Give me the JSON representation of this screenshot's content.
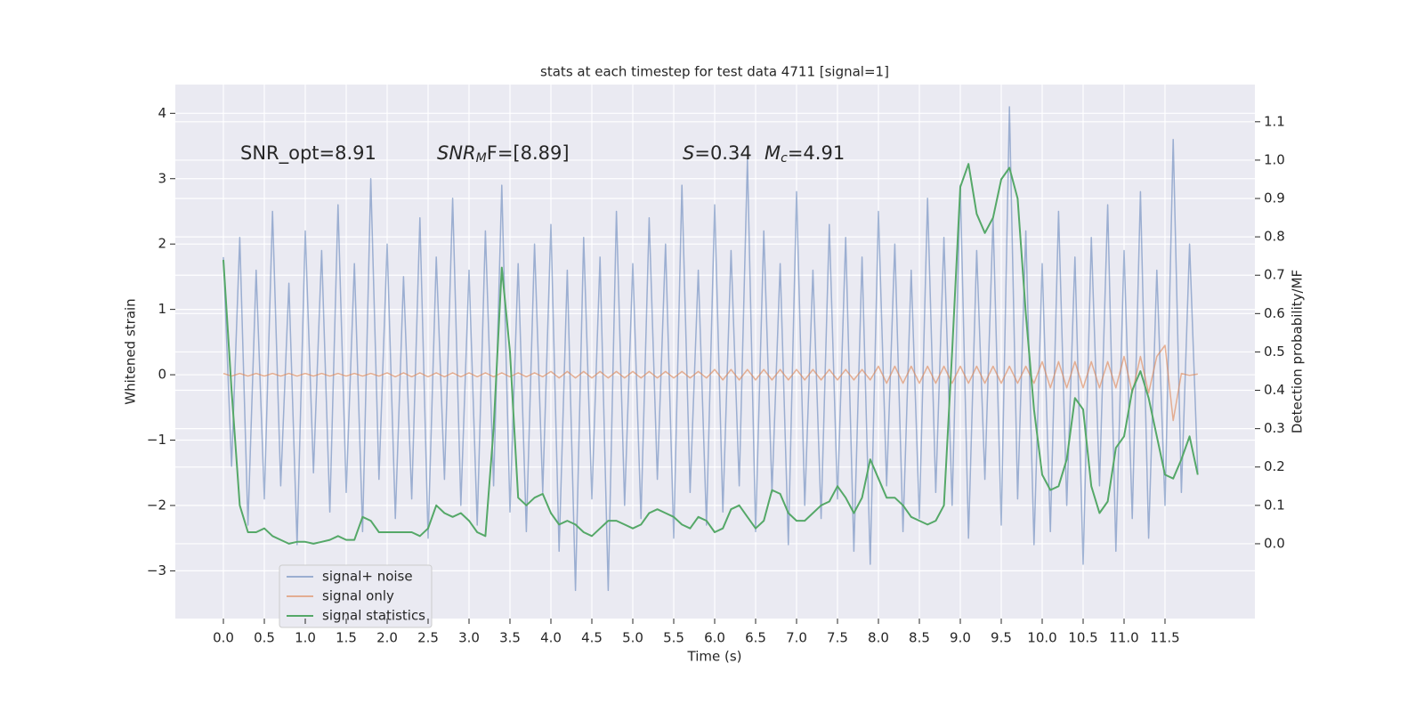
{
  "chart_data": {
    "type": "line",
    "title": "stats at each timestep for test data 4711 [signal=1]",
    "xlabel": "Time (s)",
    "ylabel": "Whitened strain",
    "y2label": "Detection probability/MF",
    "annotations": [
      [
        "SNR_opt=8.91"
      ],
      [
        "SNR",
        "M",
        "F=[8.89]"
      ],
      [
        "S",
        "=0.34"
      ],
      [
        "M",
        "c",
        "=4.91"
      ]
    ],
    "grid": true,
    "legend": "lower left",
    "xlim": [
      -0.587,
      12.598
    ],
    "ylim": [
      -3.73,
      4.44
    ],
    "y2lim": [
      -0.195,
      1.197
    ],
    "xticks": [
      {
        "value": 0,
        "label": "0.0"
      },
      {
        "value": 0.5,
        "label": "0.5"
      },
      {
        "value": 1,
        "label": "1.0"
      },
      {
        "value": 1.5,
        "label": "1.5"
      },
      {
        "value": 2,
        "label": "2.0"
      },
      {
        "value": 2.5,
        "label": "2.5"
      },
      {
        "value": 3,
        "label": "3.0"
      },
      {
        "value": 3.5,
        "label": "3.5"
      },
      {
        "value": 4,
        "label": "4.0"
      },
      {
        "value": 4.5,
        "label": "4.5"
      },
      {
        "value": 5,
        "label": "5.0"
      },
      {
        "value": 5.5,
        "label": "5.5"
      },
      {
        "value": 6,
        "label": "6.0"
      },
      {
        "value": 6.5,
        "label": "6.5"
      },
      {
        "value": 7,
        "label": "7.0"
      },
      {
        "value": 7.5,
        "label": "7.5"
      },
      {
        "value": 8,
        "label": "8.0"
      },
      {
        "value": 8.5,
        "label": "8.5"
      },
      {
        "value": 9,
        "label": "9.0"
      },
      {
        "value": 9.5,
        "label": "9.5"
      },
      {
        "value": 10,
        "label": "10.0"
      },
      {
        "value": 10.5,
        "label": "10.5"
      },
      {
        "value": 11,
        "label": "11.0"
      },
      {
        "value": 11.5,
        "label": "11.5"
      }
    ],
    "yticks": [
      {
        "value": -3,
        "label": "−3"
      },
      {
        "value": -2,
        "label": "−2"
      },
      {
        "value": -1,
        "label": "−1"
      },
      0,
      1,
      2,
      3,
      4
    ],
    "y2ticks": [
      {
        "value": 0,
        "label": "0.0"
      },
      {
        "value": 0.1,
        "label": "0.1"
      },
      {
        "value": 0.2,
        "label": "0.2"
      },
      {
        "value": 0.3,
        "label": "0.3"
      },
      {
        "value": 0.4,
        "label": "0.4"
      },
      {
        "value": 0.5,
        "label": "0.5"
      },
      {
        "value": 0.6,
        "label": "0.6"
      },
      {
        "value": 0.7,
        "label": "0.7"
      },
      {
        "value": 0.8,
        "label": "0.8"
      },
      {
        "value": 0.9,
        "label": "0.9"
      },
      {
        "value": 1.0,
        "label": "1.0"
      },
      {
        "value": 1.1,
        "label": "1.1"
      }
    ],
    "x": [
      0,
      0.1,
      0.2,
      0.3,
      0.4,
      0.5,
      0.6,
      0.7,
      0.8,
      0.9,
      1,
      1.1,
      1.2,
      1.3,
      1.4,
      1.5,
      1.6,
      1.7,
      1.8,
      1.9,
      2,
      2.1,
      2.2,
      2.3,
      2.4,
      2.5,
      2.6,
      2.7,
      2.8,
      2.9,
      3,
      3.1,
      3.2,
      3.3,
      3.4,
      3.5,
      3.6,
      3.7,
      3.8,
      3.9,
      4,
      4.1,
      4.2,
      4.3,
      4.4,
      4.5,
      4.6,
      4.7,
      4.8,
      4.9,
      5,
      5.1,
      5.2,
      5.3,
      5.4,
      5.5,
      5.6,
      5.7,
      5.8,
      5.9,
      6,
      6.1,
      6.2,
      6.3,
      6.4,
      6.5,
      6.6,
      6.7,
      6.8,
      6.9,
      7,
      7.1,
      7.2,
      7.3,
      7.4,
      7.5,
      7.6,
      7.7,
      7.8,
      7.9,
      8,
      8.1,
      8.2,
      8.3,
      8.4,
      8.5,
      8.6,
      8.7,
      8.8,
      8.9,
      9,
      9.1,
      9.2,
      9.3,
      9.4,
      9.5,
      9.6,
      9.7,
      9.8,
      9.9,
      10,
      10.1,
      10.2,
      10.3,
      10.4,
      10.5,
      10.6,
      10.7,
      10.8,
      10.9,
      11,
      11.1,
      11.2,
      11.3,
      11.4,
      11.5,
      11.6,
      11.7,
      11.8,
      11.9
    ],
    "series": [
      {
        "name": "signal+ noise",
        "color": "#4c72b0",
        "opacity": 0.5,
        "axis": "y",
        "values": [
          1.8,
          -1.4,
          2.1,
          -2.3,
          1.6,
          -1.9,
          2.5,
          -1.7,
          1.4,
          -2.6,
          2.2,
          -1.5,
          1.9,
          -2.1,
          2.6,
          -1.8,
          1.7,
          -2.4,
          3.0,
          -1.6,
          2.0,
          -2.2,
          1.5,
          -1.9,
          2.4,
          -2.5,
          1.8,
          -1.6,
          2.7,
          -2.0,
          1.6,
          -2.3,
          2.2,
          -1.7,
          2.9,
          -2.1,
          1.7,
          -2.4,
          2.0,
          -1.8,
          2.3,
          -2.7,
          1.6,
          -3.3,
          2.1,
          -1.9,
          1.8,
          -3.3,
          2.5,
          -2.0,
          1.7,
          -2.2,
          2.4,
          -1.6,
          2.0,
          -2.5,
          2.9,
          -1.8,
          1.6,
          -2.3,
          2.6,
          -2.1,
          1.9,
          -1.7,
          3.3,
          -2.4,
          2.2,
          -1.8,
          1.7,
          -2.6,
          2.8,
          -2.0,
          1.6,
          -2.2,
          2.3,
          -1.9,
          2.1,
          -2.7,
          1.8,
          -2.9,
          2.5,
          -1.7,
          2.0,
          -2.4,
          1.6,
          -2.2,
          2.7,
          -1.8,
          2.1,
          -2.0,
          2.9,
          -2.5,
          1.9,
          -1.6,
          2.4,
          -2.3,
          4.1,
          -1.9,
          2.2,
          -2.6,
          1.7,
          -2.4,
          2.5,
          -2.0,
          1.8,
          -2.9,
          2.1,
          -1.7,
          2.6,
          -2.7,
          1.9,
          -2.2,
          2.8,
          -2.5,
          1.6,
          -2.0,
          3.6,
          -1.8,
          2.0,
          -1.5
        ]
      },
      {
        "name": "signal only",
        "color": "#dd8452",
        "opacity": 0.6,
        "axis": "y",
        "values": [
          0.02,
          -0.02,
          0.02,
          -0.02,
          0.02,
          -0.02,
          0.02,
          -0.02,
          0.02,
          -0.02,
          0.02,
          -0.02,
          0.02,
          -0.02,
          0.02,
          -0.02,
          0.02,
          -0.02,
          0.02,
          -0.02,
          0.03,
          -0.03,
          0.03,
          -0.03,
          0.03,
          -0.03,
          0.03,
          -0.03,
          0.03,
          -0.03,
          0.03,
          -0.03,
          0.03,
          -0.03,
          0.03,
          -0.03,
          0.03,
          -0.03,
          0.03,
          -0.03,
          0.05,
          -0.05,
          0.05,
          -0.05,
          0.05,
          -0.05,
          0.05,
          -0.05,
          0.05,
          -0.05,
          0.05,
          -0.05,
          0.05,
          -0.05,
          0.05,
          -0.05,
          0.05,
          -0.05,
          0.05,
          -0.05,
          0.08,
          -0.08,
          0.08,
          -0.08,
          0.08,
          -0.08,
          0.08,
          -0.08,
          0.08,
          -0.08,
          0.08,
          -0.08,
          0.08,
          -0.08,
          0.08,
          -0.08,
          0.08,
          -0.08,
          0.08,
          -0.08,
          0.13,
          -0.13,
          0.13,
          -0.13,
          0.13,
          -0.13,
          0.13,
          -0.13,
          0.13,
          -0.13,
          0.13,
          -0.13,
          0.13,
          -0.13,
          0.13,
          -0.13,
          0.13,
          -0.13,
          0.13,
          -0.13,
          0.2,
          -0.2,
          0.2,
          -0.2,
          0.2,
          -0.2,
          0.2,
          -0.2,
          0.2,
          -0.2,
          0.28,
          -0.28,
          0.28,
          -0.28,
          0.28,
          0.45,
          -0.7,
          0.02,
          -0.01,
          0.01
        ]
      },
      {
        "name": "signal statistics",
        "color": "#55a868",
        "opacity": 1,
        "axis": "y2",
        "values": [
          0.74,
          0.4,
          0.1,
          0.03,
          0.03,
          0.04,
          0.02,
          0.01,
          0.0,
          0.005,
          0.005,
          0.0,
          0.005,
          0.01,
          0.02,
          0.01,
          0.01,
          0.07,
          0.06,
          0.03,
          0.03,
          0.03,
          0.03,
          0.03,
          0.02,
          0.04,
          0.1,
          0.08,
          0.07,
          0.08,
          0.06,
          0.03,
          0.02,
          0.3,
          0.72,
          0.5,
          0.12,
          0.1,
          0.12,
          0.13,
          0.08,
          0.05,
          0.06,
          0.05,
          0.03,
          0.02,
          0.04,
          0.06,
          0.06,
          0.05,
          0.04,
          0.05,
          0.08,
          0.09,
          0.08,
          0.07,
          0.05,
          0.04,
          0.07,
          0.06,
          0.03,
          0.04,
          0.09,
          0.1,
          0.07,
          0.04,
          0.06,
          0.14,
          0.13,
          0.08,
          0.06,
          0.06,
          0.08,
          0.1,
          0.11,
          0.15,
          0.12,
          0.08,
          0.12,
          0.22,
          0.17,
          0.12,
          0.12,
          0.1,
          0.07,
          0.06,
          0.05,
          0.06,
          0.1,
          0.5,
          0.93,
          0.99,
          0.86,
          0.81,
          0.85,
          0.95,
          0.98,
          0.9,
          0.6,
          0.35,
          0.18,
          0.14,
          0.15,
          0.22,
          0.38,
          0.35,
          0.15,
          0.08,
          0.11,
          0.25,
          0.28,
          0.4,
          0.45,
          0.38,
          0.28,
          0.18,
          0.17,
          0.22,
          0.28,
          0.18
        ]
      }
    ]
  }
}
